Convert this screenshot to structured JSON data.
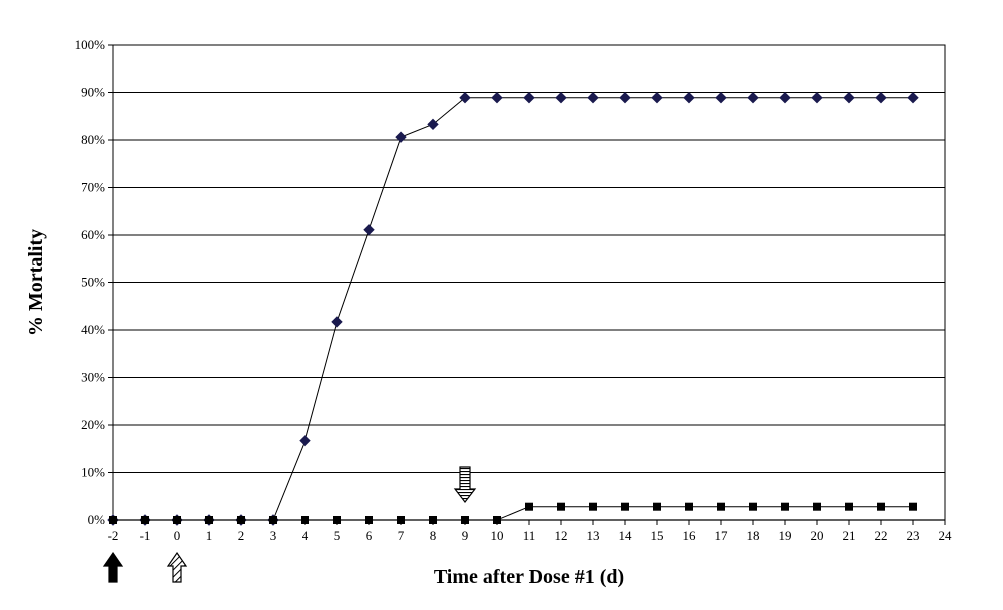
{
  "chart_data": {
    "type": "line",
    "title": "",
    "xlabel": "Time after Dose #1 (d)",
    "ylabel": "% Mortality",
    "xlim": [
      -2,
      24
    ],
    "ylim": [
      0,
      100
    ],
    "x_ticks": [
      -2,
      -1,
      0,
      1,
      2,
      3,
      4,
      5,
      6,
      7,
      8,
      9,
      10,
      11,
      12,
      13,
      14,
      15,
      16,
      17,
      18,
      19,
      20,
      21,
      22,
      23,
      24
    ],
    "y_ticks": [
      0,
      10,
      20,
      30,
      40,
      50,
      60,
      70,
      80,
      90,
      100
    ],
    "y_tick_format": "percent",
    "grid": "horizontal",
    "legend": "none",
    "series": [
      {
        "marker": "diamond",
        "color": "#1a1a4e",
        "x": [
          -2,
          -1,
          0,
          1,
          2,
          3,
          4,
          5,
          6,
          7,
          8,
          9,
          10,
          11,
          12,
          13,
          14,
          15,
          16,
          17,
          18,
          19,
          20,
          21,
          22,
          23
        ],
        "values": [
          0,
          0,
          0,
          0,
          0,
          0,
          16.7,
          41.7,
          61.1,
          80.6,
          83.3,
          88.9,
          88.9,
          88.9,
          88.9,
          88.9,
          88.9,
          88.9,
          88.9,
          88.9,
          88.9,
          88.9,
          88.9,
          88.9,
          88.9,
          88.9
        ]
      },
      {
        "marker": "square",
        "color": "#000000",
        "x": [
          -2,
          -1,
          0,
          1,
          2,
          3,
          4,
          5,
          6,
          7,
          8,
          9,
          10,
          11,
          12,
          13,
          14,
          15,
          16,
          17,
          18,
          19,
          20,
          21,
          22,
          23
        ],
        "values": [
          0,
          0,
          0,
          0,
          0,
          0,
          0,
          0,
          0,
          0,
          0,
          0,
          0,
          2.8,
          2.8,
          2.8,
          2.8,
          2.8,
          2.8,
          2.8,
          2.8,
          2.8,
          2.8,
          2.8,
          2.8,
          2.8
        ]
      }
    ],
    "annotations": [
      {
        "icon": "solid-up-arrow-icon",
        "x": -2,
        "position": "below-axis"
      },
      {
        "icon": "hatched-up-arrow-icon",
        "x": 0,
        "position": "below-axis"
      },
      {
        "icon": "striped-down-arrow-icon",
        "x": 9,
        "position": "above-series"
      }
    ]
  }
}
